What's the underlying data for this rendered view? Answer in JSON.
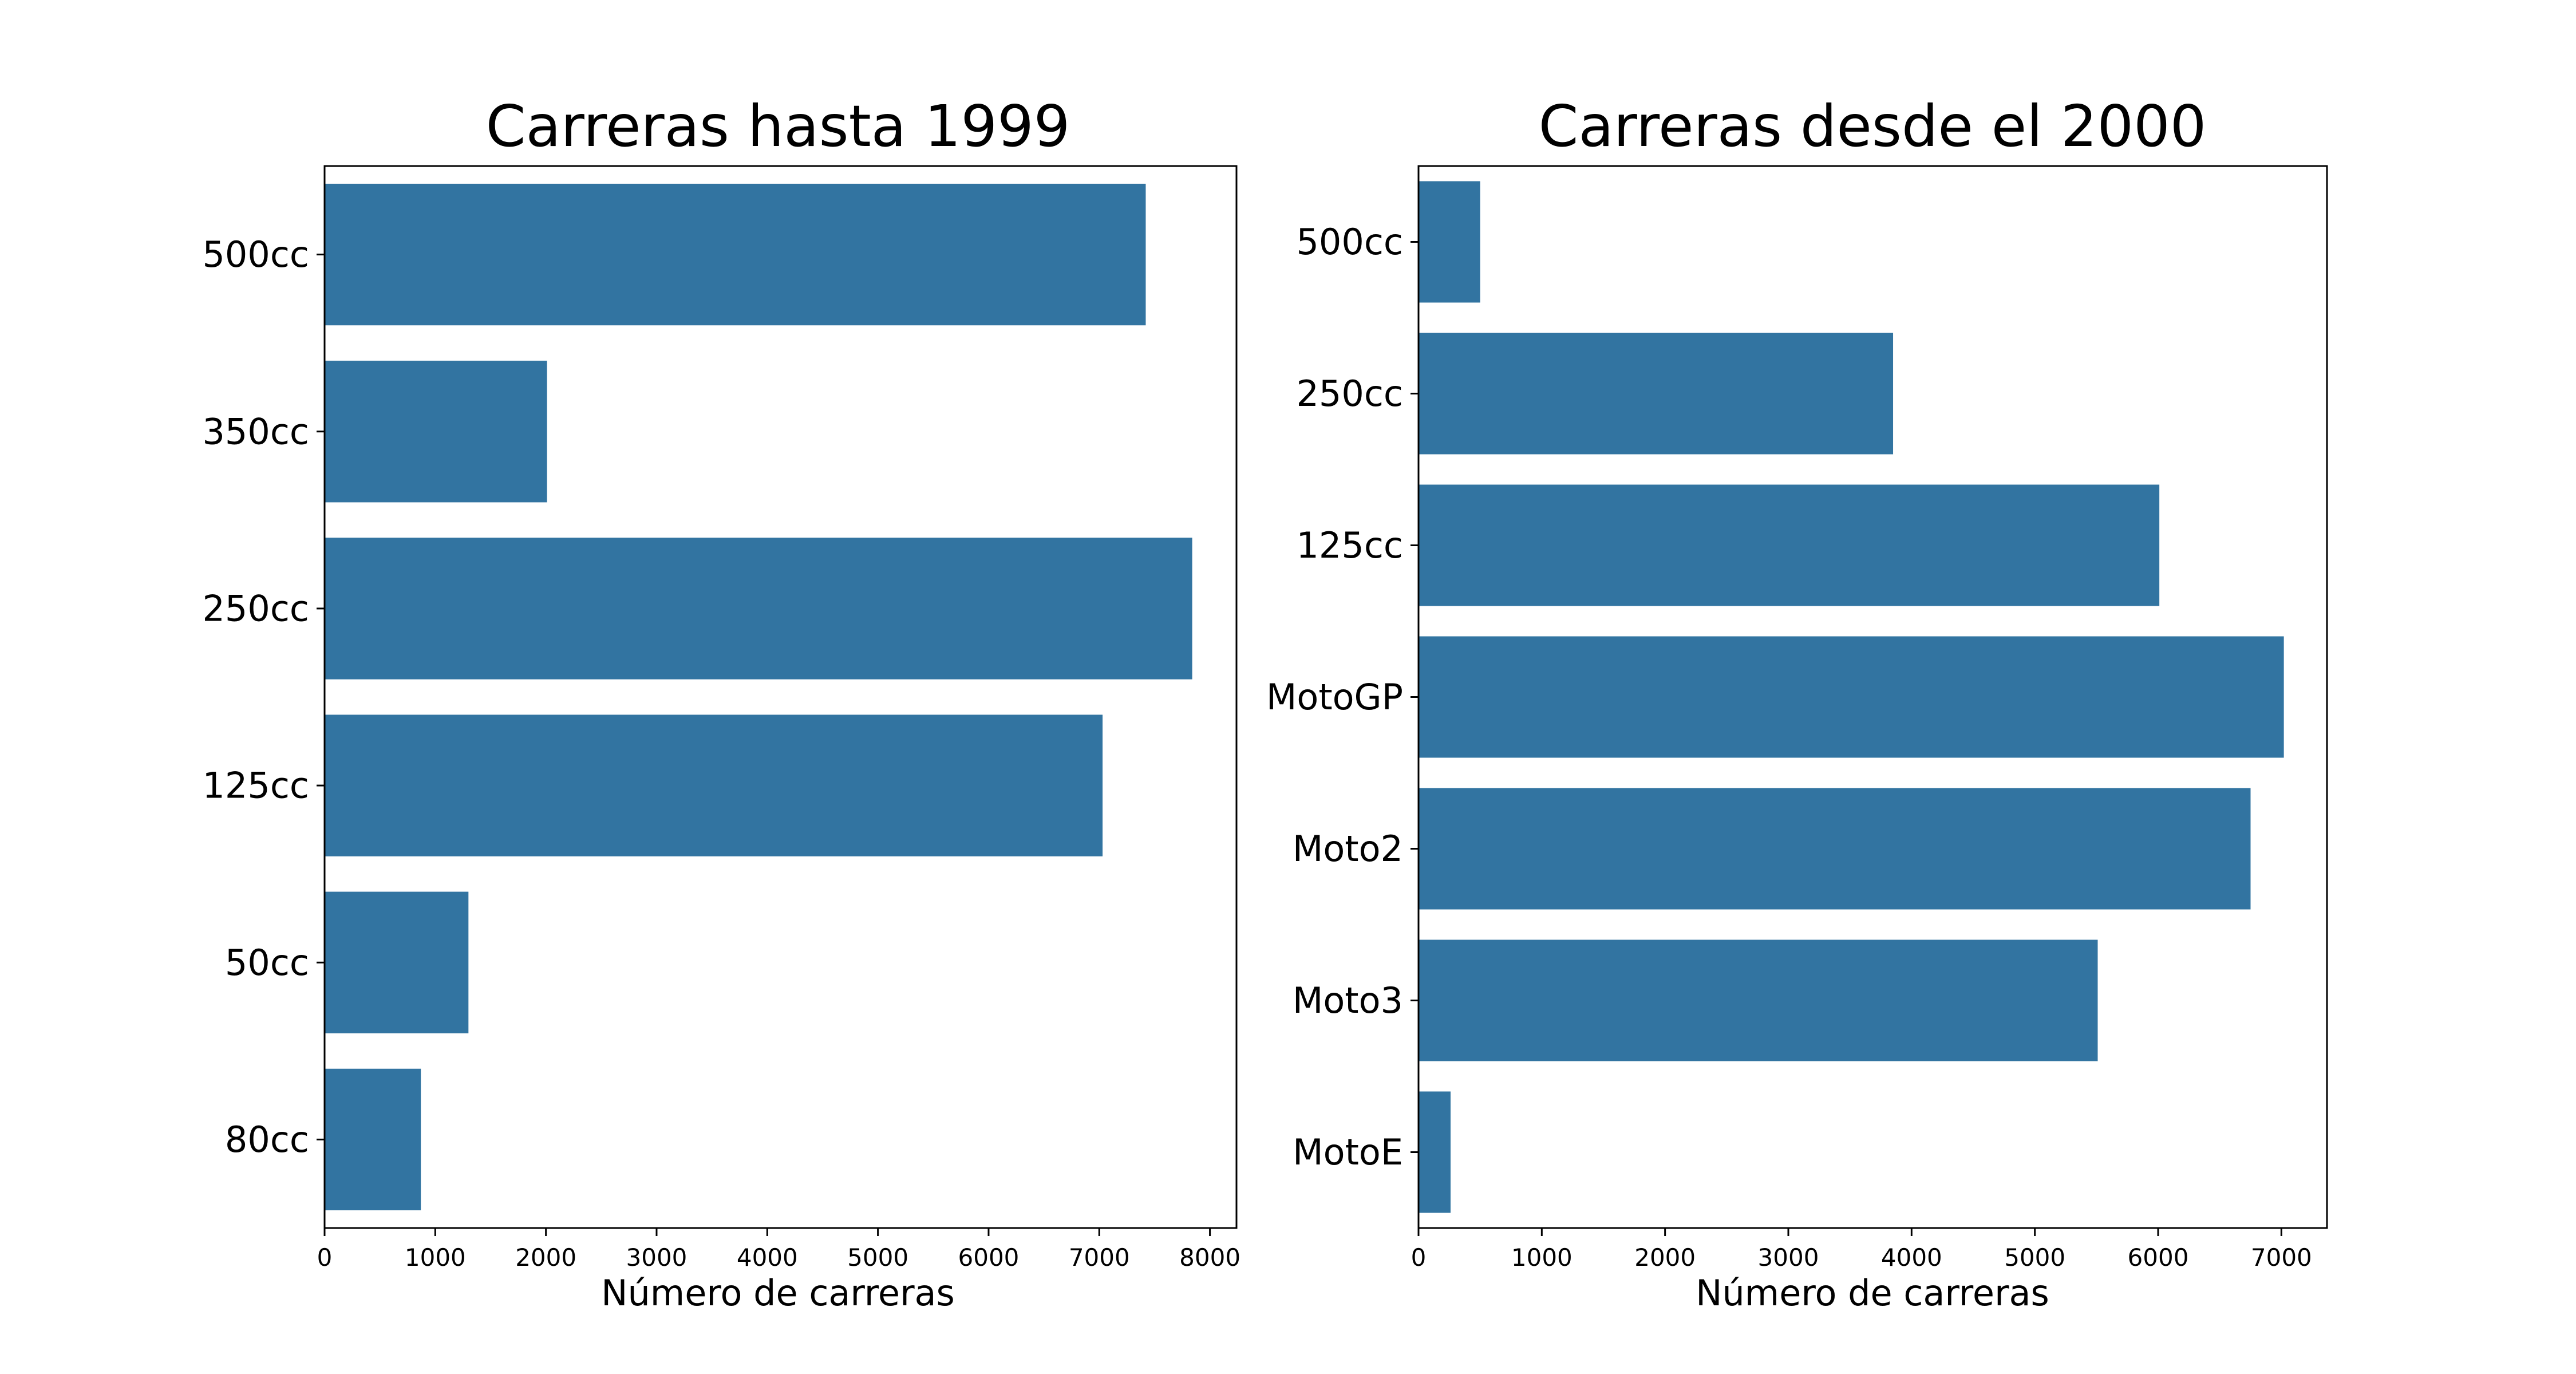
{
  "chart_data": [
    {
      "type": "bar",
      "orientation": "horizontal",
      "title": "Carreras hasta 1999",
      "xlabel": "Número de carreras",
      "ylabel": "",
      "categories": [
        "500cc",
        "350cc",
        "250cc",
        "125cc",
        "50cc",
        "80cc"
      ],
      "values": [
        7420,
        2010,
        7840,
        7030,
        1300,
        870
      ],
      "xlim": [
        0,
        8240
      ],
      "xticks": [
        0,
        1000,
        2000,
        3000,
        4000,
        5000,
        6000,
        7000,
        8000
      ],
      "xtick_labels": [
        "0",
        "1000",
        "2000",
        "3000",
        "4000",
        "5000",
        "6000",
        "7000",
        "8000"
      ],
      "bar_color": "#3274a1",
      "grid": false
    },
    {
      "type": "bar",
      "orientation": "horizontal",
      "title": "Carreras desde el 2000",
      "xlabel": "Número de carreras",
      "ylabel": "",
      "categories": [
        "500cc",
        "250cc",
        "125cc",
        "MotoGP",
        "Moto2",
        "Moto3",
        "MotoE"
      ],
      "values": [
        500,
        3850,
        6010,
        7020,
        6750,
        5510,
        260
      ],
      "xlim": [
        0,
        7370
      ],
      "xticks": [
        0,
        1000,
        2000,
        3000,
        4000,
        5000,
        6000,
        7000
      ],
      "xtick_labels": [
        "0",
        "1000",
        "2000",
        "3000",
        "4000",
        "5000",
        "6000",
        "7000"
      ],
      "bar_color": "#3274a1",
      "grid": false
    }
  ]
}
